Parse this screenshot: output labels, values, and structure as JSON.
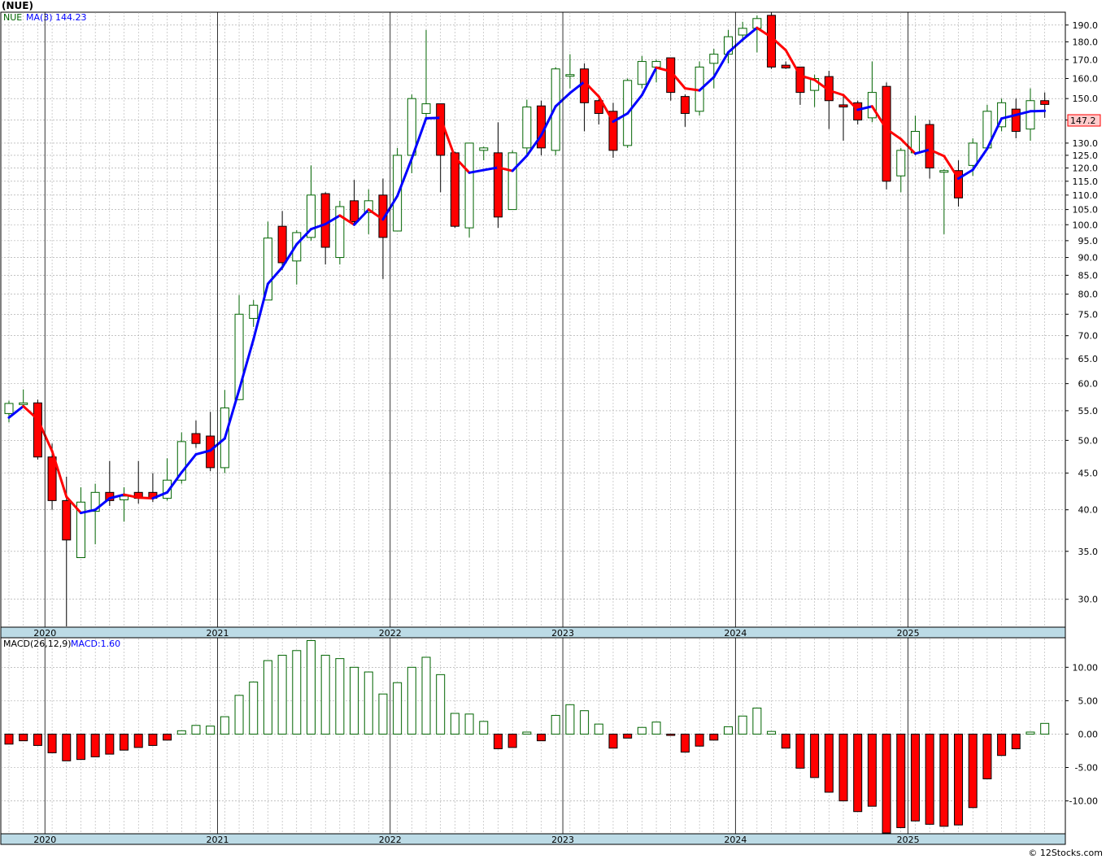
{
  "title": "(NUE)",
  "legend": {
    "symbol": "NUE",
    "ma_label": "MA(3)",
    "ma_value": "144.23"
  },
  "last_price_label": "147.2",
  "macd_legend": {
    "label": "MACD(26,12,9)",
    "value_label": "MACD:1.60"
  },
  "watermark": "© 12Stocks.com",
  "colors": {
    "up_stroke": "#006400",
    "down_fill": "#ff0000",
    "ma_up": "#0000ff",
    "ma_down": "#ff0000",
    "axis_band": "#bcdbe6",
    "grid": "#a0a0a0",
    "price_label_bg": "#ffcccc"
  },
  "chart_data": [
    {
      "type": "candlestick",
      "scale": "log",
      "ylim": [
        27.5,
        198
      ],
      "yticks": [
        30,
        35,
        40,
        45,
        50,
        55,
        60,
        65,
        70,
        75,
        80,
        85,
        90,
        95,
        100,
        105,
        110,
        115,
        120,
        125,
        130,
        140,
        150,
        160,
        170,
        180,
        190
      ],
      "ytick_labels": [
        "30.0",
        "35.0",
        "40.0",
        "45.0",
        "50.0",
        "55.0",
        "60.0",
        "65.0",
        "70.0",
        "75.0",
        "80.0",
        "85.0",
        "90.0",
        "95.0",
        "100.0",
        "105.0",
        "110.0",
        "115.0",
        "120.0",
        "125.0",
        "130.0",
        "140.0",
        "150.0",
        "160.0",
        "170.0",
        "180.0",
        "190.0"
      ],
      "x_start": "2019-10",
      "x_labels": [
        {
          "label": "2020",
          "month": "2020-01"
        },
        {
          "label": "2021",
          "month": "2021-01"
        },
        {
          "label": "2022",
          "month": "2022-01"
        },
        {
          "label": "2023",
          "month": "2023-01"
        },
        {
          "label": "2024",
          "month": "2024-01"
        },
        {
          "label": "2025",
          "month": "2025-01"
        }
      ],
      "series": [
        {
          "name": "NUE",
          "ohlc": [
            [
              54.5,
              56.8,
              53.0,
              56.3
            ],
            [
              56.3,
              58.9,
              55.5,
              56.4
            ],
            [
              56.4,
              57.0,
              47.0,
              47.4
            ],
            [
              47.4,
              49.5,
              40.0,
              41.2
            ],
            [
              41.2,
              44.5,
              27.5,
              36.3
            ],
            [
              34.3,
              43.0,
              34.3,
              41.0
            ],
            [
              39.8,
              43.5,
              35.8,
              42.3
            ],
            [
              42.3,
              46.8,
              40.5,
              41.2
            ],
            [
              41.3,
              43.0,
              38.5,
              41.8
            ],
            [
              42.3,
              46.8,
              40.8,
              41.5
            ],
            [
              42.3,
              45.0,
              41.0,
              41.5
            ],
            [
              41.5,
              47.2,
              41.2,
              44.0
            ],
            [
              44.0,
              51.3,
              43.5,
              49.8
            ],
            [
              51.1,
              53.3,
              48.8,
              49.5
            ],
            [
              50.7,
              54.8,
              45.3,
              45.8
            ],
            [
              45.8,
              58.8,
              45.0,
              55.5
            ],
            [
              57.0,
              79.8,
              57.0,
              75.0
            ],
            [
              74.0,
              78.5,
              72.0,
              77.2
            ],
            [
              78.5,
              101.0,
              78.5,
              95.8
            ],
            [
              99.5,
              104.5,
              86.5,
              88.5
            ],
            [
              89.0,
              98.3,
              82.5,
              97.5
            ],
            [
              96.0,
              121.0,
              95.0,
              110.0
            ],
            [
              110.5,
              111.0,
              88.0,
              93.0
            ],
            [
              90.0,
              108.0,
              88.0,
              106.0
            ],
            [
              108.0,
              115.5,
              100.0,
              101.0
            ],
            [
              104.0,
              112.0,
              97.0,
              108.0
            ],
            [
              110.0,
              116.0,
              84.0,
              96.0
            ],
            [
              98.0,
              128.0,
              98.0,
              125.0
            ],
            [
              125.0,
              152.0,
              118.0,
              150.0
            ],
            [
              143.0,
              187.0,
              140.0,
              147.5
            ],
            [
              147.5,
              146.0,
              111.0,
              125.0
            ],
            [
              126.0,
              126.5,
              99.0,
              99.5
            ],
            [
              99.0,
              130.0,
              96.0,
              130.0
            ],
            [
              127.0,
              128.5,
              123.0,
              128.0
            ],
            [
              126.0,
              139.0,
              99.0,
              102.5
            ],
            [
              105.0,
              127.0,
              105.0,
              126.0
            ],
            [
              128.0,
              149.5,
              125.0,
              146.0
            ],
            [
              146.5,
              149.0,
              125.0,
              128.0
            ],
            [
              127.0,
              166.0,
              125.0,
              165.0
            ],
            [
              162.0,
              173.0,
              155.0,
              162.0
            ],
            [
              165.0,
              168.0,
              135.0,
              148.0
            ],
            [
              149.0,
              150.0,
              138.0,
              143.0
            ],
            [
              144.0,
              148.0,
              124.0,
              127.0
            ],
            [
              129.0,
              160.0,
              128.0,
              159.0
            ],
            [
              157.0,
              172.0,
              155.0,
              169.0
            ],
            [
              166.0,
              170.0,
              158.0,
              169.0
            ],
            [
              171.0,
              171.0,
              149.0,
              153.0
            ],
            [
              151.0,
              152.0,
              137.0,
              143.0
            ],
            [
              144.0,
              169.0,
              142.0,
              166.0
            ],
            [
              168.0,
              176.0,
              155.0,
              173.0
            ],
            [
              173.0,
              187.0,
              168.0,
              183.0
            ],
            [
              184.0,
              192.0,
              180.0,
              188.0
            ],
            [
              188.0,
              196.0,
              174.0,
              194.0
            ],
            [
              196.0,
              198.0,
              165.0,
              166.0
            ],
            [
              167.0,
              169.0,
              165.0,
              165.5
            ],
            [
              166.0,
              166.0,
              147.0,
              153.0
            ],
            [
              154.0,
              162.0,
              146.0,
              160.0
            ],
            [
              161.0,
              164.0,
              136.0,
              149.0
            ],
            [
              147.0,
              152.0,
              131.0,
              146.0
            ],
            [
              148.0,
              149.0,
              138.0,
              140.0
            ],
            [
              141.0,
              169.0,
              139.0,
              153.0
            ],
            [
              156.0,
              158.0,
              112.0,
              115.0
            ],
            [
              117.0,
              128.0,
              111.0,
              127.0
            ],
            [
              126.0,
              142.0,
              125.0,
              135.0
            ],
            [
              138.0,
              140.0,
              116.0,
              120.0
            ],
            [
              119.0,
              119.5,
              97.0,
              119.0
            ],
            [
              119.0,
              123.0,
              106.0,
              109.0
            ],
            [
              121.0,
              132.0,
              117.0,
              130.0
            ],
            [
              128.0,
              147.0,
              127.0,
              144.0
            ],
            [
              137.0,
              150.0,
              135.0,
              148.0
            ],
            [
              145.0,
              150.0,
              132.0,
              135.0
            ],
            [
              136.0,
              155.0,
              131.0,
              149.0
            ],
            [
              149.0,
              153.0,
              141.0,
              147.2
            ]
          ]
        },
        {
          "name": "MA(3)",
          "values": [
            53.8,
            55.8,
            53.5,
            48.3,
            41.7,
            39.6,
            40.0,
            41.5,
            42.0,
            41.6,
            41.5,
            42.3,
            45.1,
            47.8,
            48.4,
            50.3,
            58.8,
            69.2,
            82.7,
            87.2,
            93.9,
            98.6,
            100.2,
            103.0,
            100.0,
            105.0,
            101.7,
            109.7,
            123.7,
            140.8,
            141.0,
            124.2,
            118.2,
            119.2,
            120.2,
            118.9,
            124.8,
            133.3,
            146.3,
            152.7,
            158.3,
            151.0,
            139.3,
            143.0,
            151.7,
            165.7,
            163.7,
            155.0,
            154.0,
            160.7,
            174.0,
            181.3,
            188.3,
            182.7,
            175.2,
            161.5,
            159.3,
            154.0,
            151.7,
            144.7,
            146.3,
            136.0,
            131.7,
            125.7,
            127.3,
            124.7,
            116.0,
            119.3,
            127.7,
            140.7,
            142.3,
            144.0,
            144.2
          ]
        }
      ]
    },
    {
      "type": "bar",
      "title": "MACD(26,12,9)",
      "ylim": [
        -14.8,
        14.3
      ],
      "yticks": [
        -10,
        -5,
        0,
        5,
        10
      ],
      "ytick_labels": [
        "-10.00",
        "-5.00",
        "0.00",
        "5.00",
        "10.00"
      ],
      "x_start": "2019-10",
      "x_labels": [
        {
          "label": "2020",
          "month": "2020-01"
        },
        {
          "label": "2021",
          "month": "2021-01"
        },
        {
          "label": "2022",
          "month": "2022-01"
        },
        {
          "label": "2023",
          "month": "2023-01"
        },
        {
          "label": "2024",
          "month": "2024-01"
        },
        {
          "label": "2025",
          "month": "2025-01"
        }
      ],
      "series": [
        {
          "name": "MACD",
          "values": [
            -1.5,
            -1.0,
            -1.7,
            -2.8,
            -4.0,
            -3.8,
            -3.4,
            -3.0,
            -2.4,
            -2.0,
            -1.7,
            -0.9,
            0.5,
            1.3,
            1.2,
            2.6,
            5.8,
            7.8,
            11.0,
            11.8,
            12.5,
            14.0,
            11.8,
            11.3,
            10.0,
            9.3,
            6.0,
            7.7,
            10.0,
            11.5,
            8.9,
            3.1,
            3.0,
            1.9,
            -2.2,
            -2.0,
            0.3,
            -1.0,
            2.8,
            4.4,
            3.5,
            1.5,
            -2.1,
            -0.6,
            1.0,
            1.8,
            -0.2,
            -2.7,
            -1.8,
            -0.9,
            1.1,
            2.7,
            3.9,
            0.4,
            -2.1,
            -5.1,
            -6.5,
            -8.7,
            -10.0,
            -11.6,
            -10.8,
            -14.8,
            -14.0,
            -13.0,
            -13.5,
            -13.8,
            -13.6,
            -11.0,
            -6.7,
            -3.2,
            -2.2,
            0.3,
            1.6
          ]
        }
      ]
    }
  ]
}
